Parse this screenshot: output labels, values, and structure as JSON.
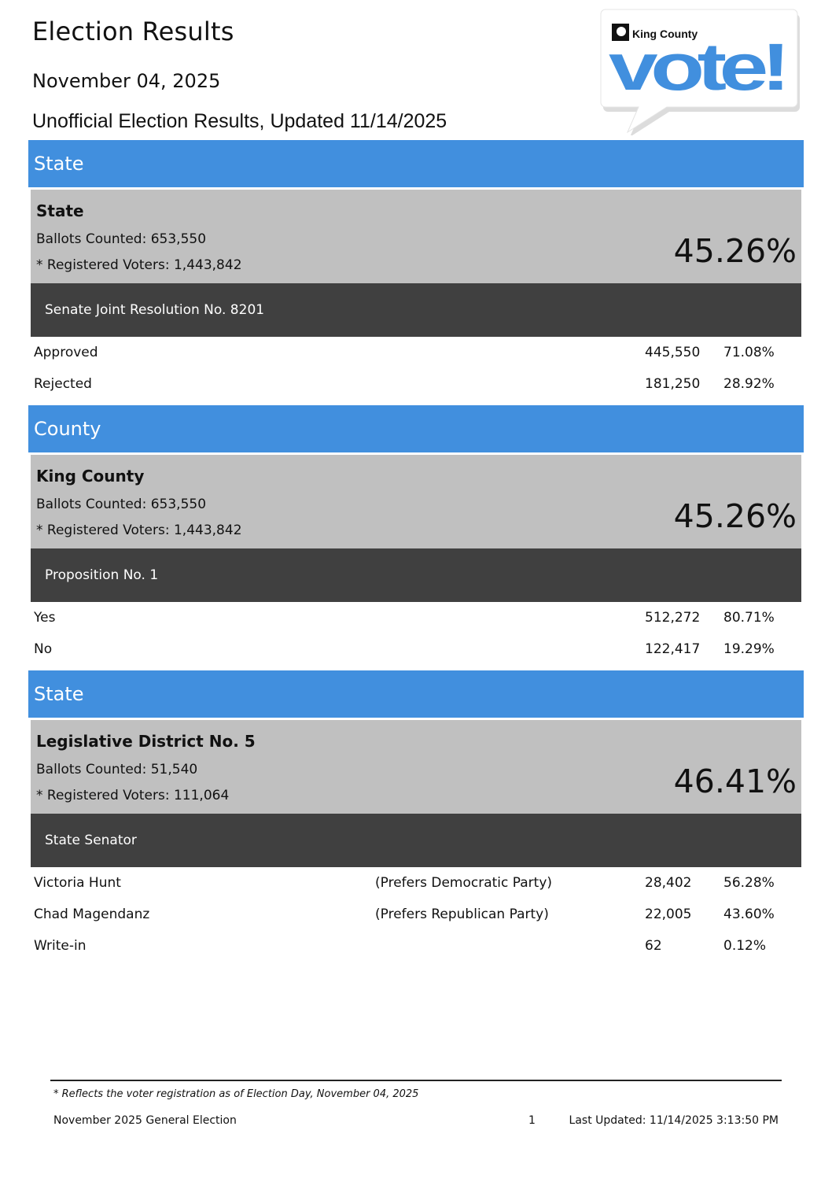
{
  "header": {
    "title": "Election Results",
    "date": "November 04, 2025",
    "subtitle": "Unofficial Election Results, Updated 11/14/2025"
  },
  "logo": {
    "county_text": "King County",
    "vote_text": "vote!",
    "accent_color": "#418fde"
  },
  "colors": {
    "section_bar": "#418fde",
    "summary_bg": "#c0c0c0",
    "race_bar": "#404040"
  },
  "sections": [
    {
      "level": "State",
      "jurisdiction": "State",
      "ballots_label": "Ballots Counted: 653,550",
      "registered_label": "* Registered Voters: 1,443,842",
      "turnout": "45.26%",
      "race": "Senate Joint Resolution No. 8201",
      "results": [
        {
          "name": "Approved",
          "party": "",
          "votes": "445,550",
          "percent": "71.08%"
        },
        {
          "name": "Rejected",
          "party": "",
          "votes": "181,250",
          "percent": "28.92%"
        }
      ]
    },
    {
      "level": "County",
      "jurisdiction": "King County",
      "ballots_label": "Ballots Counted: 653,550",
      "registered_label": "* Registered Voters: 1,443,842",
      "turnout": "45.26%",
      "race": "Proposition No. 1",
      "results": [
        {
          "name": "Yes",
          "party": "",
          "votes": "512,272",
          "percent": "80.71%"
        },
        {
          "name": "No",
          "party": "",
          "votes": "122,417",
          "percent": "19.29%"
        }
      ]
    },
    {
      "level": "State",
      "jurisdiction": "Legislative District No. 5",
      "ballots_label": "Ballots Counted: 51,540",
      "registered_label": "* Registered Voters: 111,064",
      "turnout": "46.41%",
      "race": "State Senator",
      "results": [
        {
          "name": "Victoria Hunt",
          "party": "(Prefers Democratic Party)",
          "votes": "28,402",
          "percent": "56.28%"
        },
        {
          "name": "Chad Magendanz",
          "party": "(Prefers Republican Party)",
          "votes": "22,005",
          "percent": "43.60%"
        },
        {
          "name": "Write-in",
          "party": "",
          "votes": "62",
          "percent": "0.12%"
        }
      ]
    }
  ],
  "footer": {
    "note": "* Reflects the voter registration as of Election Day, November 04, 2025",
    "election_name": "November 2025 General Election",
    "page_number": "1",
    "last_updated": "Last Updated: 11/14/2025 3:13:50 PM"
  }
}
